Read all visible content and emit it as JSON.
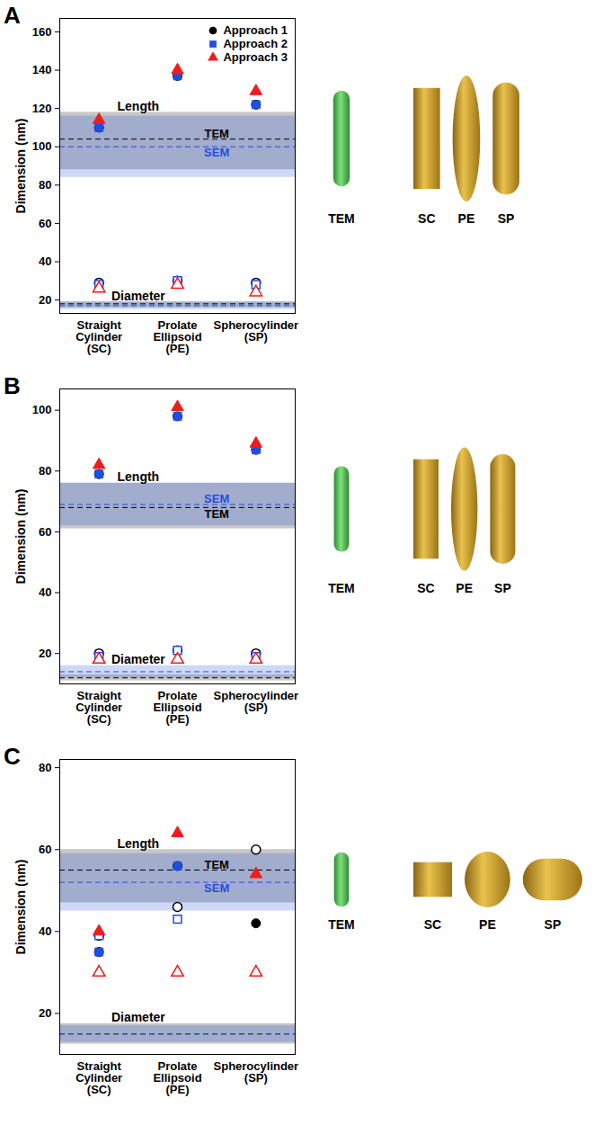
{
  "chart_data": [
    {
      "type": "scatter",
      "title": "A",
      "y_label": "Dimension (nm)",
      "categories": [
        "Straight Cylinder (SC)",
        "Prolate Ellipsoid (PE)",
        "Spherocylinder (SP)"
      ],
      "shape_labels": [
        "SC",
        "PE",
        "SP"
      ],
      "measure_labels": {
        "length": "Length",
        "diameter": "Diameter"
      },
      "series": [
        {
          "name": "Approach 1",
          "color": "#000000",
          "marker": "circle",
          "length": [
            110,
            137,
            122
          ],
          "diameter": [
            29,
            30,
            29
          ]
        },
        {
          "name": "Approach 2",
          "color": "#1f4fe0",
          "marker": "square",
          "length": [
            110,
            137,
            122
          ],
          "diameter": [
            28,
            30,
            28
          ]
        },
        {
          "name": "Approach 3",
          "color": "#ee1c1c",
          "marker": "triangle",
          "length": [
            114,
            140,
            129
          ],
          "diameter": [
            26,
            28,
            24
          ]
        }
      ],
      "reference": [
        {
          "name": "TEM",
          "color": "#000000",
          "line_style": "dashed",
          "length": 104,
          "length_range": [
            88,
            118
          ],
          "diameter": 18,
          "diameter_range": [
            16,
            19
          ]
        },
        {
          "name": "SEM",
          "color": "#1f4fe0",
          "line_style": "dashed",
          "length": 100,
          "length_range": [
            84,
            116
          ],
          "diameter": 17,
          "diameter_range": [
            15,
            19
          ]
        }
      ],
      "ylim": [
        13,
        167
      ],
      "yticks": [
        20,
        40,
        60,
        80,
        100,
        120,
        140,
        160
      ],
      "legend": "top-right"
    },
    {
      "type": "scatter",
      "title": "B",
      "y_label": "Dimension (nm)",
      "categories": [
        "Straight Cylinder (SC)",
        "Prolate Ellipsoid (PE)",
        "Spherocylinder (SP)"
      ],
      "shape_labels": [
        "SC",
        "PE",
        "SP"
      ],
      "measure_labels": {
        "length": "Length",
        "diameter": "Diameter"
      },
      "series": [
        {
          "name": "Approach 1",
          "color": "#000000",
          "marker": "circle",
          "length": [
            79,
            98,
            87
          ],
          "diameter": [
            20,
            21,
            20
          ]
        },
        {
          "name": "Approach 2",
          "color": "#1f4fe0",
          "marker": "square",
          "length": [
            79,
            98,
            87
          ],
          "diameter": [
            19,
            21,
            19
          ]
        },
        {
          "name": "Approach 3",
          "color": "#ee1c1c",
          "marker": "triangle",
          "length": [
            82,
            101,
            89
          ],
          "diameter": [
            18,
            18,
            18
          ]
        }
      ],
      "reference": [
        {
          "name": "TEM",
          "color": "#000000",
          "line_style": "dashed",
          "length": 68,
          "length_range": [
            61,
            76
          ],
          "diameter": 12,
          "diameter_range": [
            11,
            13
          ]
        },
        {
          "name": "SEM",
          "color": "#1f4fe0",
          "line_style": "dashed",
          "length": 69,
          "length_range": [
            62,
            76
          ],
          "diameter": 14,
          "diameter_range": [
            12,
            16
          ]
        }
      ],
      "ylim": [
        10,
        107
      ],
      "yticks": [
        20,
        40,
        60,
        80,
        100
      ]
    },
    {
      "type": "scatter",
      "title": "C",
      "y_label": "Dimension (nm)",
      "categories": [
        "Straight Cylinder (SC)",
        "Prolate Ellipsoid (PE)",
        "Spherocylinder (SP)"
      ],
      "shape_labels": [
        "SC",
        "PE",
        "SP"
      ],
      "measure_labels": {
        "length": "Length",
        "diameter": "Diameter"
      },
      "series": [
        {
          "name": "Approach 1",
          "color": "#000000",
          "marker": "circle",
          "length": [
            35,
            56,
            42
          ],
          "diameter": [
            39,
            46,
            60
          ]
        },
        {
          "name": "Approach 2",
          "color": "#1f4fe0",
          "marker": "square",
          "length": [
            35,
            56,
            null
          ],
          "diameter": [
            39,
            43,
            null
          ]
        },
        {
          "name": "Approach 3",
          "color": "#ee1c1c",
          "marker": "triangle",
          "length": [
            40,
            64,
            54
          ],
          "diameter": [
            30,
            30,
            30
          ]
        }
      ],
      "reference": [
        {
          "name": "TEM",
          "color": "#000000",
          "line_style": "dashed",
          "length": 55,
          "length_range": [
            47,
            60
          ],
          "diameter": 15,
          "diameter_range": [
            12.5,
            17.5
          ]
        },
        {
          "name": "SEM",
          "color": "#1f4fe0",
          "line_style": "dashed",
          "length": 52,
          "length_range": [
            45,
            59
          ],
          "diameter": 15,
          "diameter_range": [
            13,
            17
          ]
        }
      ],
      "ylim": [
        10,
        82
      ],
      "yticks": [
        20,
        40,
        60,
        80
      ]
    }
  ]
}
